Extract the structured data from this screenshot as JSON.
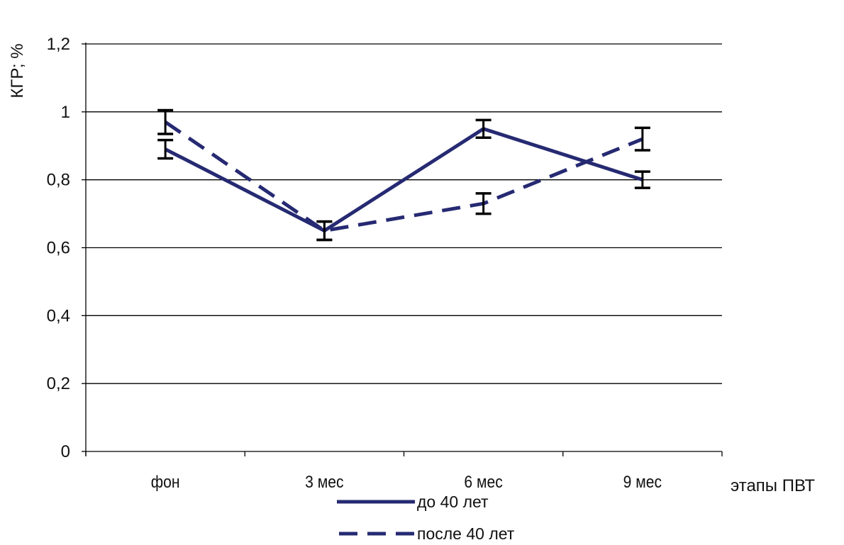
{
  "chart_data": {
    "type": "line",
    "title": "",
    "xlabel": "этапы ПВТ",
    "ylabel": "КГР; %",
    "categories": [
      "фон",
      "3 мес",
      "6 мес",
      "9 мес"
    ],
    "ylim": [
      0,
      1.2
    ],
    "yticks": [
      0,
      0.2,
      0.4,
      0.6,
      0.8,
      1,
      1.2
    ],
    "ytick_labels": [
      "0",
      "0,2",
      "0,4",
      "0,6",
      "0,8",
      "1",
      "1,2"
    ],
    "grid": true,
    "legend_position": "bottom",
    "series": [
      {
        "name": "до 40 лет",
        "style": "solid",
        "color": "#262a72",
        "values": [
          0.89,
          0.65,
          0.95,
          0.8
        ],
        "errors": [
          0.027,
          0.027,
          0.026,
          0.024
        ]
      },
      {
        "name": "после 40 лет",
        "style": "dashed",
        "color": "#262a72",
        "values": [
          0.97,
          0.65,
          0.73,
          0.92
        ],
        "errors": [
          0.035,
          0.027,
          0.03,
          0.033
        ]
      }
    ],
    "error_bar_color": "#000000"
  }
}
